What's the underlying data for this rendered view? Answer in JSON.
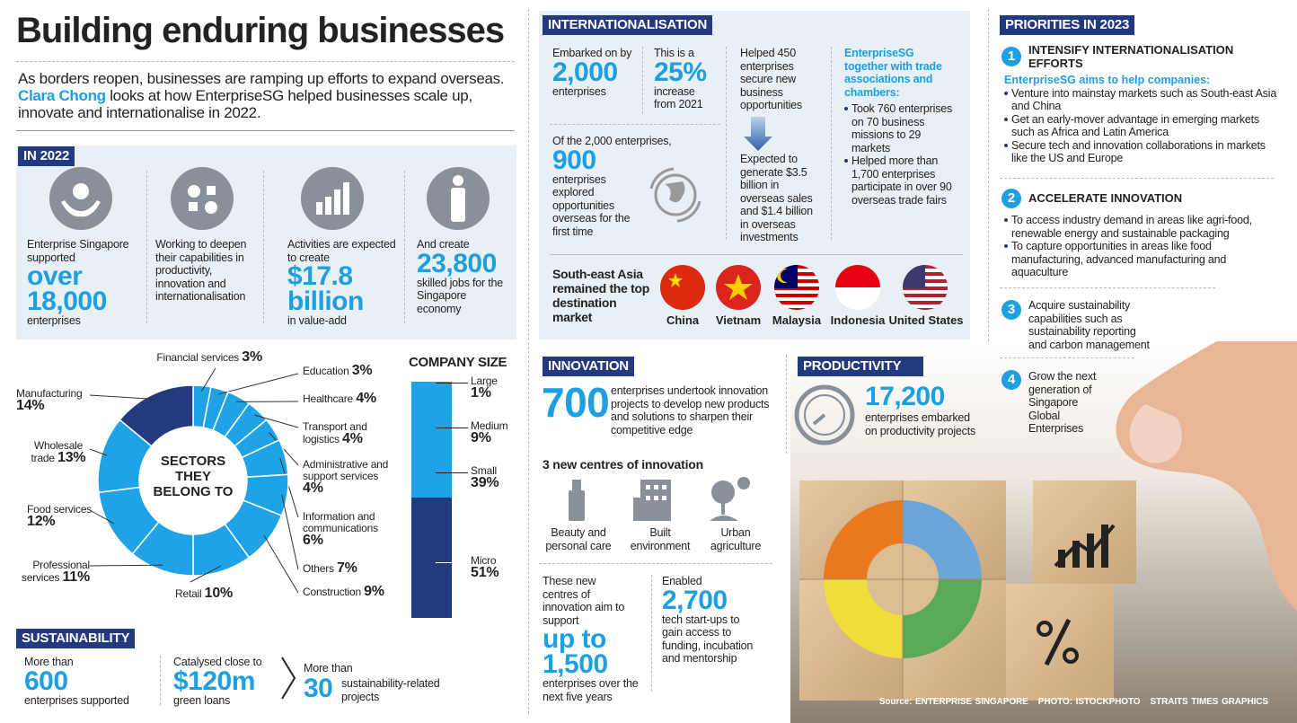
{
  "header": {
    "title": "Building enduring businesses",
    "intro": [
      "As borders reopen, businesses are ramping up efforts to expand overseas. ",
      "Clara Chong",
      " looks at how EnterpriseSG helped businesses scale up, innovate and internationalise in 2022."
    ]
  },
  "in_2022": {
    "heading": "IN 2022",
    "items": [
      {
        "lead": "Enterprise Singapore supported",
        "figure": [
          "over",
          "18,000"
        ],
        "tail": "enterprises"
      },
      {
        "lead": "Working to deepen their capabilities in productivity, innovation and internationalisation"
      },
      {
        "lead": "Activities are expected to create",
        "figure": [
          "$17.8",
          "billion"
        ],
        "tail": "in value-add"
      },
      {
        "lead": "And create",
        "figure": [
          "23,800"
        ],
        "tail": "skilled jobs for the Singapore economy"
      }
    ]
  },
  "sectors": {
    "type": "donut",
    "center_label": "SECTORS THEY BELONG TO",
    "categories": [
      "Financial services",
      "Education",
      "Healthcare",
      "Transport and logistics",
      "Administrative and support services",
      "Information and communications",
      "Others",
      "Construction",
      "Retail",
      "Professional services",
      "Food services",
      "Wholesale trade",
      "Manufacturing"
    ],
    "values": [
      3,
      3,
      4,
      4,
      4,
      6,
      7,
      9,
      10,
      11,
      12,
      13,
      14
    ],
    "value_labels": [
      "3%",
      "3%",
      "4%",
      "4%",
      "4%",
      "6%",
      "7%",
      "9%",
      "10%",
      "11%",
      "12%",
      "13%",
      "14%"
    ],
    "colors": [
      "#1fa3e6",
      "#1fa3e6",
      "#1fa3e6",
      "#1fa3e6",
      "#1fa3e6",
      "#1fa3e6",
      "#1fa3e6",
      "#1fa3e6",
      "#1fa3e6",
      "#1fa3e6",
      "#1fa3e6",
      "#1fa3e6",
      "#243a7f"
    ]
  },
  "company_size": {
    "type": "stacked_bar",
    "title": "COMPANY SIZE",
    "categories": [
      "Large",
      "Medium",
      "Small",
      "Micro"
    ],
    "values": [
      1,
      9,
      39,
      51
    ],
    "value_labels": [
      "1%",
      "9%",
      "39%",
      "51%"
    ],
    "colors": [
      "#1fa3e6",
      "#1fa3e6",
      "#1fa3e6",
      "#243a7f"
    ]
  },
  "sustainability": {
    "heading": "SUSTAINABILITY",
    "items": [
      {
        "lead": "More than",
        "figure": "600",
        "tail": "enterprises supported"
      },
      {
        "lead": "Catalysed close to",
        "figure": "$120m",
        "tail": "green loans"
      },
      {
        "lead": "More than",
        "figure": "30",
        "tail": "sustainability-related projects"
      }
    ]
  },
  "internationalisation": {
    "heading": "INTERNATIONALISATION",
    "embarked": {
      "lead": "Embarked on by",
      "figure": "2,000",
      "tail": "enterprises"
    },
    "increase": {
      "lead": "This is a",
      "figure": "25%",
      "tail": "increase from 2021"
    },
    "explored": {
      "lead": "Of the 2,000 enterprises,",
      "figure": "900",
      "tail": "enterprises explored opportunities overseas for the first time"
    },
    "helped": "Helped 450 enterprises secure new business opportunities",
    "expected": "Expected to generate $3.5 billion in overseas sales and $1.4 billion in overseas investments",
    "partners": {
      "title": "EnterpriseSG together with trade associations and chambers:",
      "bullets": [
        "Took 760 enterprises on 70 business missions to 29 markets",
        "Helped more than 1,700 enterprises participate in over 90 overseas trade fairs"
      ]
    },
    "destination": {
      "text": "South-east Asia remained the top destination market",
      "countries": [
        "China",
        "Vietnam",
        "Malaysia",
        "Indonesia",
        "United States"
      ]
    }
  },
  "innovation": {
    "heading": "INNOVATION",
    "figure": "700",
    "text": "enterprises undertook innovation projects to develop new products and solutions to sharpen their competitive edge",
    "centres_heading": "3 new centres of innovation",
    "centres": [
      "Beauty and personal care",
      "Built environment",
      "Urban agriculture"
    ],
    "support": {
      "lead": "These new centres of innovation aim to support",
      "figure": [
        "up to",
        "1,500"
      ],
      "tail": "enterprises over the next five years"
    },
    "startups": {
      "lead": "Enabled",
      "figure": "2,700",
      "tail": "tech start-ups to gain access to funding, incubation and mentorship"
    }
  },
  "productivity": {
    "heading": "PRODUCTIVITY",
    "figure": "17,200",
    "text": "enterprises embarked on productivity projects"
  },
  "priorities": {
    "heading": "PRIORITIES IN 2023",
    "items": [
      {
        "number": "1",
        "title": "INTENSIFY INTERNATIONALISATION EFFORTS",
        "subtitle": "EnterpriseSG aims to help companies:",
        "bullets": [
          "Venture into mainstay markets such as South-east Asia and China",
          "Get an early-mover advantage in emerging markets such as Africa and Latin America",
          "Secure tech and innovation collaborations in markets like the US and Europe"
        ]
      },
      {
        "number": "2",
        "title": "ACCELERATE INNOVATION",
        "bullets": [
          "To access industry demand in areas like agri-food, renewable energy and sustainable packaging",
          "To capture opportunities in areas like food manufacturing, advanced manufacturing and aquaculture"
        ]
      },
      {
        "number": "3",
        "text": "Acquire sustainability capabilities such as sustainability reporting and carbon management"
      },
      {
        "number": "4",
        "text": "Grow the next generation of Singapore Global Enterprises"
      }
    ]
  },
  "credits": [
    "Source: ENTERPRISE SINGAPORE",
    "PHOTO: ISTOCKPHOTO",
    "STRAITS TIMES GRAPHICS"
  ]
}
